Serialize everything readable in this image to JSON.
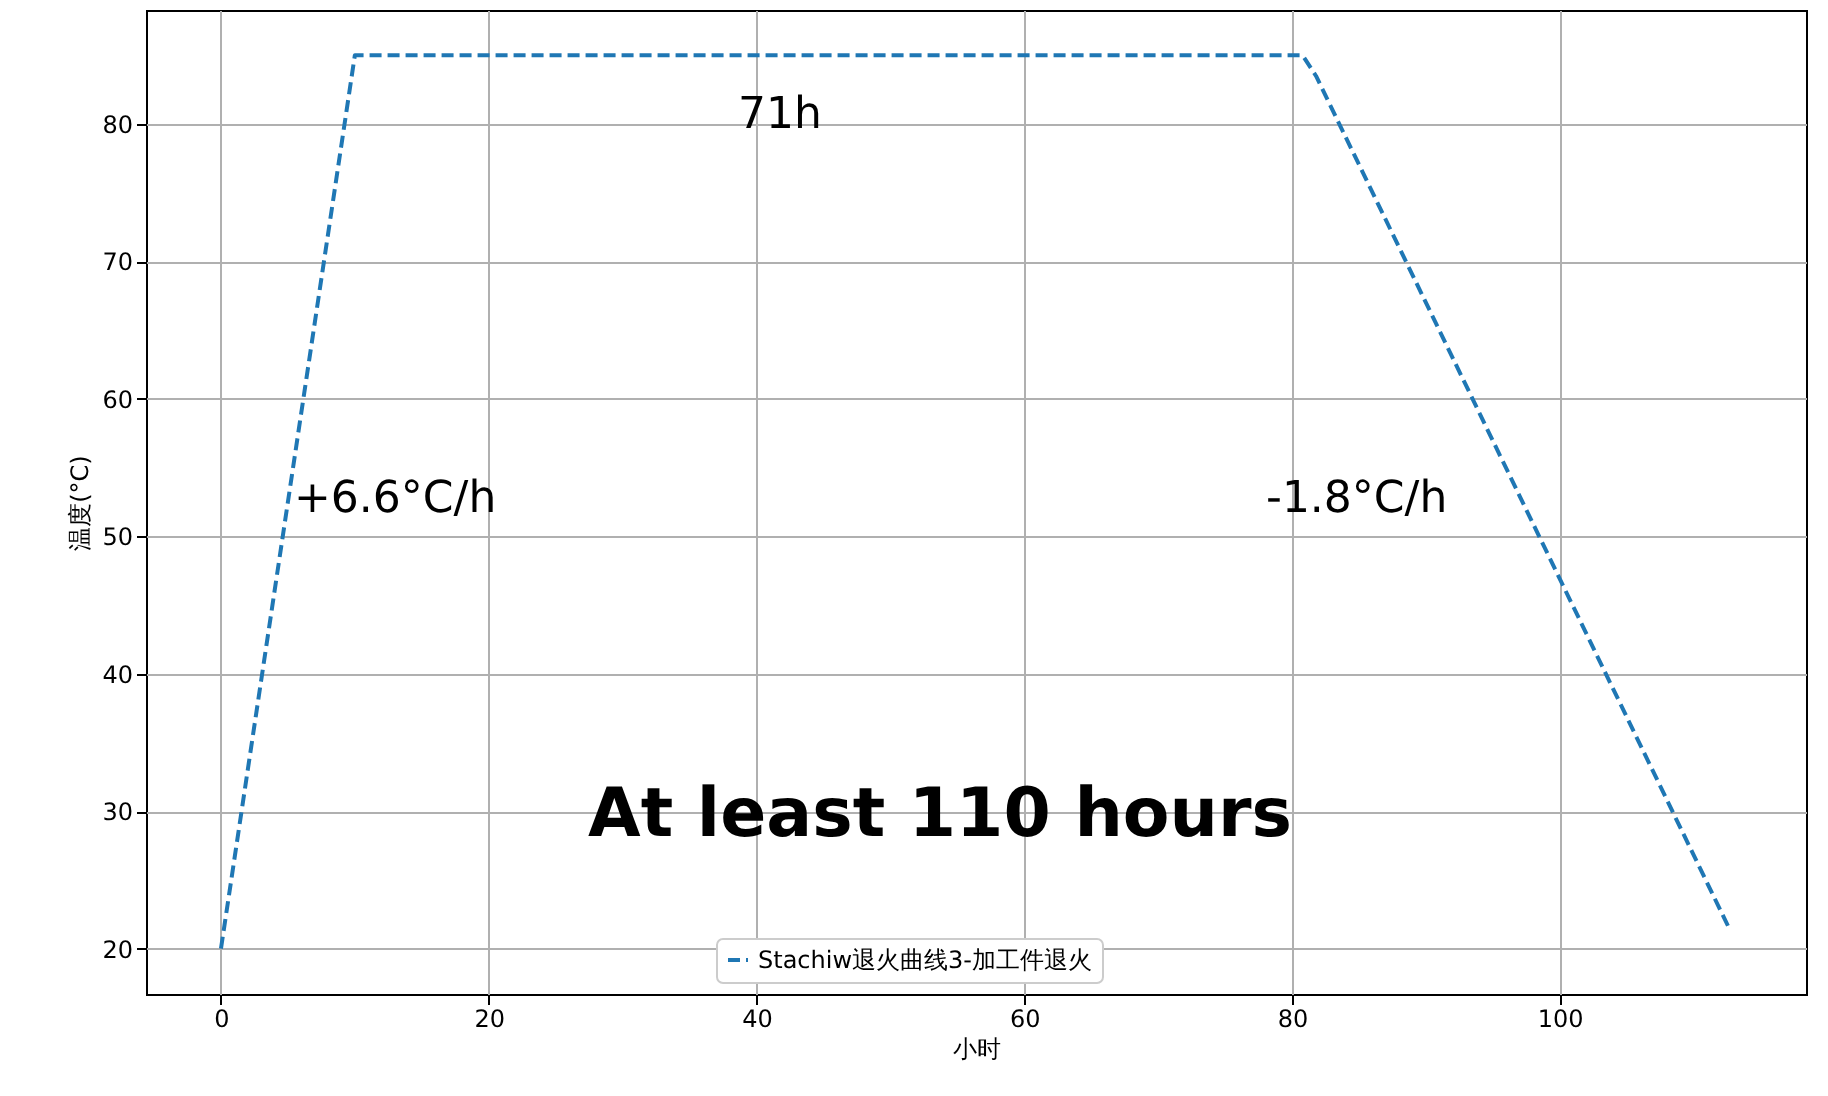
{
  "chart_data": {
    "type": "line",
    "xlabel": "小时",
    "ylabel": "温度(°C)",
    "x": [
      0,
      10,
      80.8,
      81.8,
      112.7
    ],
    "series": [
      {
        "name": "Stachiw退火曲线3-加工件退火",
        "color": "#1f77b4",
        "values": [
          20,
          85,
          85,
          83.5,
          21.4
        ]
      }
    ],
    "xlim": [
      -5.6,
      118.4
    ],
    "ylim": [
      16.7,
      88.3
    ],
    "xticks": [
      0,
      20,
      40,
      60,
      80,
      100
    ],
    "yticks": [
      20,
      30,
      40,
      50,
      60,
      70,
      80
    ],
    "grid": true,
    "legend": "bottom",
    "line_style": "dashed",
    "annotations": [
      "71h",
      "+6.6°C/h",
      "-1.8°C/h",
      "At least 110 hours"
    ]
  }
}
